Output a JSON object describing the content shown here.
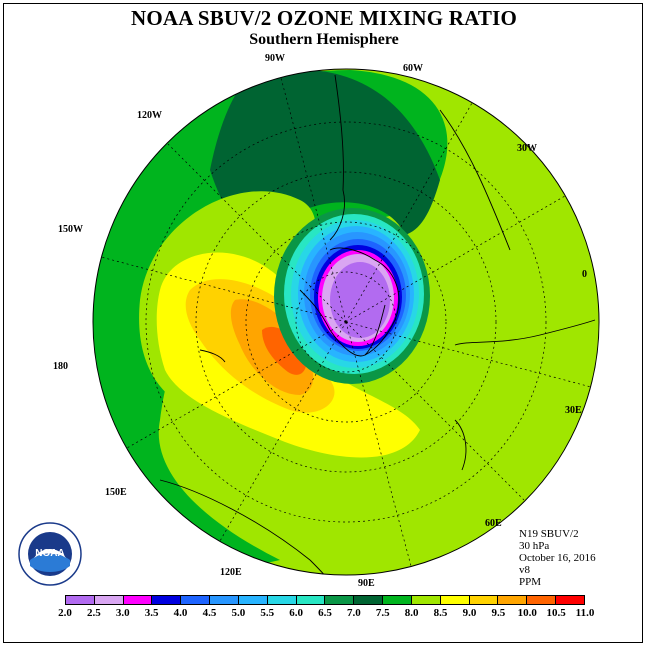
{
  "title": "NOAA SBUV/2 OZONE MIXING RATIO",
  "subtitle": "Southern Hemisphere",
  "longitude_labels": [
    "90W",
    "60W",
    "30W",
    "0",
    "30E",
    "60E",
    "90E",
    "120E",
    "150E",
    "180",
    "150W",
    "120W"
  ],
  "info": {
    "satellite": "N19 SBUV/2",
    "level": "30 hPa",
    "date": "October 16, 2016",
    "version": "v8",
    "units": "PPM"
  },
  "legend": {
    "labels": [
      "2.0",
      "2.5",
      "3.0",
      "3.5",
      "4.0",
      "4.5",
      "5.0",
      "5.5",
      "6.0",
      "6.5",
      "7.0",
      "7.5",
      "8.0",
      "8.5",
      "9.0",
      "9.5",
      "10.0",
      "10.5",
      "11.0"
    ],
    "colors": [
      "#b26bf0",
      "#d9a6f2",
      "#ff00ff",
      "#0000e0",
      "#1e64ff",
      "#2896ff",
      "#28b4ff",
      "#28d7e6",
      "#28e6c3",
      "#0a9646",
      "#006432",
      "#00b41e",
      "#a0e600",
      "#ffff00",
      "#ffd200",
      "#ffa500",
      "#ff6400",
      "#ff0000",
      "#8c5a32"
    ]
  },
  "logo": {
    "text": "NOAA",
    "ring_text": "NATIONAL OCEANIC AND ATMOSPHERIC ADMINISTRATION · U.S. DEPARTMENT OF COMMERCE"
  },
  "colors": {
    "outer_band": "#00b41e",
    "dark_band": "#006432",
    "high_ring": "#a0e600",
    "yellow": "#ffff00",
    "orange": "#ffa500",
    "hole_core": "#b26bf0"
  }
}
